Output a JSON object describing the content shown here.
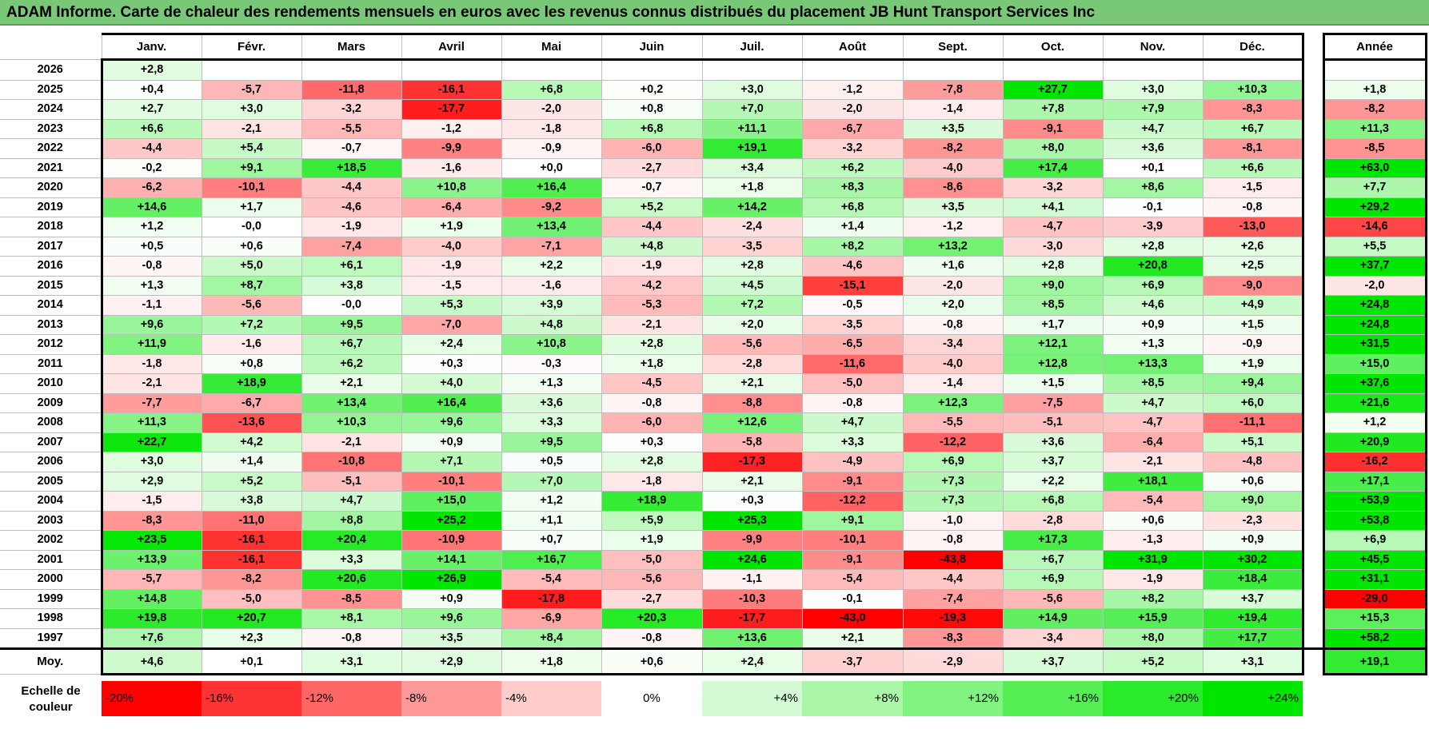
{
  "title": "ADAM Informe. Carte de chaleur des rendements mensuels en euros avec les revenus connus distribués du placement JB Hunt Transport Services Inc",
  "chart_data": {
    "type": "heatmap",
    "columns": [
      "Janv.",
      "Févr.",
      "Mars",
      "Avril",
      "Mai",
      "Juin",
      "Juil.",
      "Août",
      "Sept.",
      "Oct.",
      "Nov.",
      "Déc."
    ],
    "annual_header": "Année",
    "rows": [
      {
        "year": "2026",
        "values": [
          "+2,8",
          "",
          "",
          "",
          "",
          "",
          "",
          "",
          "",
          "",
          "",
          ""
        ],
        "annual": ""
      },
      {
        "year": "2025",
        "values": [
          "+0,4",
          "-5,7",
          "-11,8",
          "-16,1",
          "+6,8",
          "+0,2",
          "+3,0",
          "-1,2",
          "-7,8",
          "+27,7",
          "+3,0",
          "+10,3"
        ],
        "annual": "+1,8"
      },
      {
        "year": "2024",
        "values": [
          "+2,7",
          "+3,0",
          "-3,2",
          "-17,7",
          "-2,0",
          "+0,8",
          "+7,0",
          "-2,0",
          "-1,4",
          "+7,8",
          "+7,9",
          "-8,3"
        ],
        "annual": "-8,2"
      },
      {
        "year": "2023",
        "values": [
          "+6,6",
          "-2,1",
          "-5,5",
          "-1,2",
          "-1,8",
          "+6,8",
          "+11,1",
          "-6,7",
          "+3,5",
          "-9,1",
          "+4,7",
          "+6,7"
        ],
        "annual": "+11,3"
      },
      {
        "year": "2022",
        "values": [
          "-4,4",
          "+5,4",
          "-0,7",
          "-9,9",
          "-0,9",
          "-6,0",
          "+19,1",
          "-3,2",
          "-8,2",
          "+8,0",
          "+3,6",
          "-8,1"
        ],
        "annual": "-8,5"
      },
      {
        "year": "2021",
        "values": [
          "-0,2",
          "+9,1",
          "+18,5",
          "-1,6",
          "+0,0",
          "-2,7",
          "+3,4",
          "+6,2",
          "-4,0",
          "+17,4",
          "+0,1",
          "+6,6"
        ],
        "annual": "+63,0"
      },
      {
        "year": "2020",
        "values": [
          "-6,2",
          "-10,1",
          "-4,4",
          "+10,8",
          "+16,4",
          "-0,7",
          "+1,8",
          "+8,3",
          "-8,6",
          "-3,2",
          "+8,6",
          "-1,5"
        ],
        "annual": "+7,7"
      },
      {
        "year": "2019",
        "values": [
          "+14,6",
          "+1,7",
          "-4,6",
          "-6,4",
          "-9,2",
          "+5,2",
          "+14,2",
          "+6,8",
          "+3,5",
          "+4,1",
          "-0,1",
          "-0,8"
        ],
        "annual": "+29,2"
      },
      {
        "year": "2018",
        "values": [
          "+1,2",
          "-0,0",
          "-1,9",
          "+1,9",
          "+13,4",
          "-4,4",
          "-2,4",
          "+1,4",
          "-1,2",
          "-4,7",
          "-3,9",
          "-13,0"
        ],
        "annual": "-14,6"
      },
      {
        "year": "2017",
        "values": [
          "+0,5",
          "+0,6",
          "-7,4",
          "-4,0",
          "-7,1",
          "+4,8",
          "-3,5",
          "+8,2",
          "+13,2",
          "-3,0",
          "+2,8",
          "+2,6"
        ],
        "annual": "+5,5"
      },
      {
        "year": "2016",
        "values": [
          "-0,8",
          "+5,0",
          "+6,1",
          "-1,9",
          "+2,2",
          "-1,9",
          "+2,8",
          "-4,6",
          "+1,6",
          "+2,8",
          "+20,8",
          "+2,5"
        ],
        "annual": "+37,7"
      },
      {
        "year": "2015",
        "values": [
          "+1,3",
          "+8,7",
          "+3,8",
          "-1,5",
          "-1,6",
          "-4,2",
          "+4,5",
          "-15,1",
          "-2,0",
          "+9,0",
          "+6,9",
          "-9,0"
        ],
        "annual": "-2,0"
      },
      {
        "year": "2014",
        "values": [
          "-1,1",
          "-5,6",
          "-0,0",
          "+5,3",
          "+3,9",
          "-5,3",
          "+7,2",
          "-0,5",
          "+2,0",
          "+8,5",
          "+4,6",
          "+4,9"
        ],
        "annual": "+24,8"
      },
      {
        "year": "2013",
        "values": [
          "+9,6",
          "+7,2",
          "+9,5",
          "-7,0",
          "+4,8",
          "-2,1",
          "+2,0",
          "-3,5",
          "-0,8",
          "+1,7",
          "+0,9",
          "+1,5"
        ],
        "annual": "+24,8"
      },
      {
        "year": "2012",
        "values": [
          "+11,9",
          "-1,6",
          "+6,7",
          "+2,4",
          "+10,8",
          "+2,8",
          "-5,6",
          "-6,5",
          "-3,4",
          "+12,1",
          "+1,3",
          "-0,9"
        ],
        "annual": "+31,5"
      },
      {
        "year": "2011",
        "values": [
          "-1,8",
          "+0,8",
          "+6,2",
          "+0,3",
          "-0,3",
          "+1,8",
          "-2,8",
          "-11,6",
          "-4,0",
          "+12,8",
          "+13,3",
          "+1,9"
        ],
        "annual": "+15,0"
      },
      {
        "year": "2010",
        "values": [
          "-2,1",
          "+18,9",
          "+2,1",
          "+4,0",
          "+1,3",
          "-4,5",
          "+2,1",
          "-5,0",
          "-1,4",
          "+1,5",
          "+8,5",
          "+9,4"
        ],
        "annual": "+37,6"
      },
      {
        "year": "2009",
        "values": [
          "-7,7",
          "-6,7",
          "+13,4",
          "+16,4",
          "+3,6",
          "-0,8",
          "-8,8",
          "-0,8",
          "+12,3",
          "-7,5",
          "+4,7",
          "+6,0"
        ],
        "annual": "+21,6"
      },
      {
        "year": "2008",
        "values": [
          "+11,3",
          "-13,6",
          "+10,3",
          "+9,6",
          "+3,3",
          "-6,0",
          "+12,6",
          "+4,7",
          "-5,5",
          "-5,1",
          "-4,7",
          "-11,1"
        ],
        "annual": "+1,2"
      },
      {
        "year": "2007",
        "values": [
          "+22,7",
          "+4,2",
          "-2,1",
          "+0,9",
          "+9,5",
          "+0,3",
          "-5,8",
          "+3,3",
          "-12,2",
          "+3,6",
          "-6,4",
          "+5,1"
        ],
        "annual": "+20,9"
      },
      {
        "year": "2006",
        "values": [
          "+3,0",
          "+1,4",
          "-10,8",
          "+7,1",
          "+0,5",
          "+2,8",
          "-17,3",
          "-4,9",
          "+6,9",
          "+3,7",
          "-2,1",
          "-4,8"
        ],
        "annual": "-16,2"
      },
      {
        "year": "2005",
        "values": [
          "+2,9",
          "+5,2",
          "-5,1",
          "-10,1",
          "+7,0",
          "-1,8",
          "+2,1",
          "-9,1",
          "+7,3",
          "+2,2",
          "+18,1",
          "+0,6"
        ],
        "annual": "+17,1"
      },
      {
        "year": "2004",
        "values": [
          "-1,5",
          "+3,8",
          "+4,7",
          "+15,0",
          "+1,2",
          "+18,9",
          "+0,3",
          "-12,2",
          "+7,3",
          "+6,8",
          "-5,4",
          "+9,0"
        ],
        "annual": "+53,9"
      },
      {
        "year": "2003",
        "values": [
          "-8,3",
          "-11,0",
          "+8,8",
          "+25,2",
          "+1,1",
          "+5,9",
          "+25,3",
          "+9,1",
          "-1,0",
          "-2,8",
          "+0,6",
          "-2,3"
        ],
        "annual": "+53,8"
      },
      {
        "year": "2002",
        "values": [
          "+23,5",
          "-16,1",
          "+20,4",
          "-10,9",
          "+0,7",
          "+1,9",
          "-9,9",
          "-10,1",
          "-0,8",
          "+17,3",
          "-1,3",
          "+0,9"
        ],
        "annual": "+6,9"
      },
      {
        "year": "2001",
        "values": [
          "+13,9",
          "-16,1",
          "+3,3",
          "+14,1",
          "+16,7",
          "-5,0",
          "+24,6",
          "-9,1",
          "-43,8",
          "+6,7",
          "+31,9",
          "+30,2"
        ],
        "annual": "+45,5"
      },
      {
        "year": "2000",
        "values": [
          "-5,7",
          "-8,2",
          "+20,6",
          "+26,9",
          "-5,4",
          "-5,6",
          "-1,1",
          "-5,4",
          "-4,4",
          "+6,9",
          "-1,9",
          "+18,4"
        ],
        "annual": "+31,1"
      },
      {
        "year": "1999",
        "values": [
          "+14,8",
          "-5,0",
          "-8,5",
          "+0,9",
          "-17,8",
          "-2,7",
          "-10,3",
          "-0,1",
          "-7,4",
          "-5,6",
          "+8,2",
          "+3,7"
        ],
        "annual": "-29,0"
      },
      {
        "year": "1998",
        "values": [
          "+19,8",
          "+20,7",
          "+8,1",
          "+9,6",
          "-6,9",
          "+20,3",
          "-17,7",
          "-43,0",
          "-19,3",
          "+14,9",
          "+15,9",
          "+19,4"
        ],
        "annual": "+15,3"
      },
      {
        "year": "1997",
        "values": [
          "+7,6",
          "+2,3",
          "-0,8",
          "+3,5",
          "+8,4",
          "-0,8",
          "+13,6",
          "+2,1",
          "-8,3",
          "-3,4",
          "+8,0",
          "+17,7"
        ],
        "annual": "+58,2"
      }
    ],
    "average": {
      "label": "Moy.",
      "values": [
        "+4,6",
        "+0,1",
        "+3,1",
        "+2,9",
        "+1,8",
        "+0,6",
        "+2,4",
        "-3,7",
        "-2,9",
        "+3,7",
        "+5,2",
        "+3,1"
      ],
      "annual": "+19,1"
    },
    "scale": {
      "label": "Echelle de couleur",
      "stops": [
        "-20%",
        "-16%",
        "-12%",
        "-8%",
        "-4%",
        "0%",
        "+4%",
        "+8%",
        "+12%",
        "+16%",
        "+20%",
        "+24%"
      ]
    }
  }
}
